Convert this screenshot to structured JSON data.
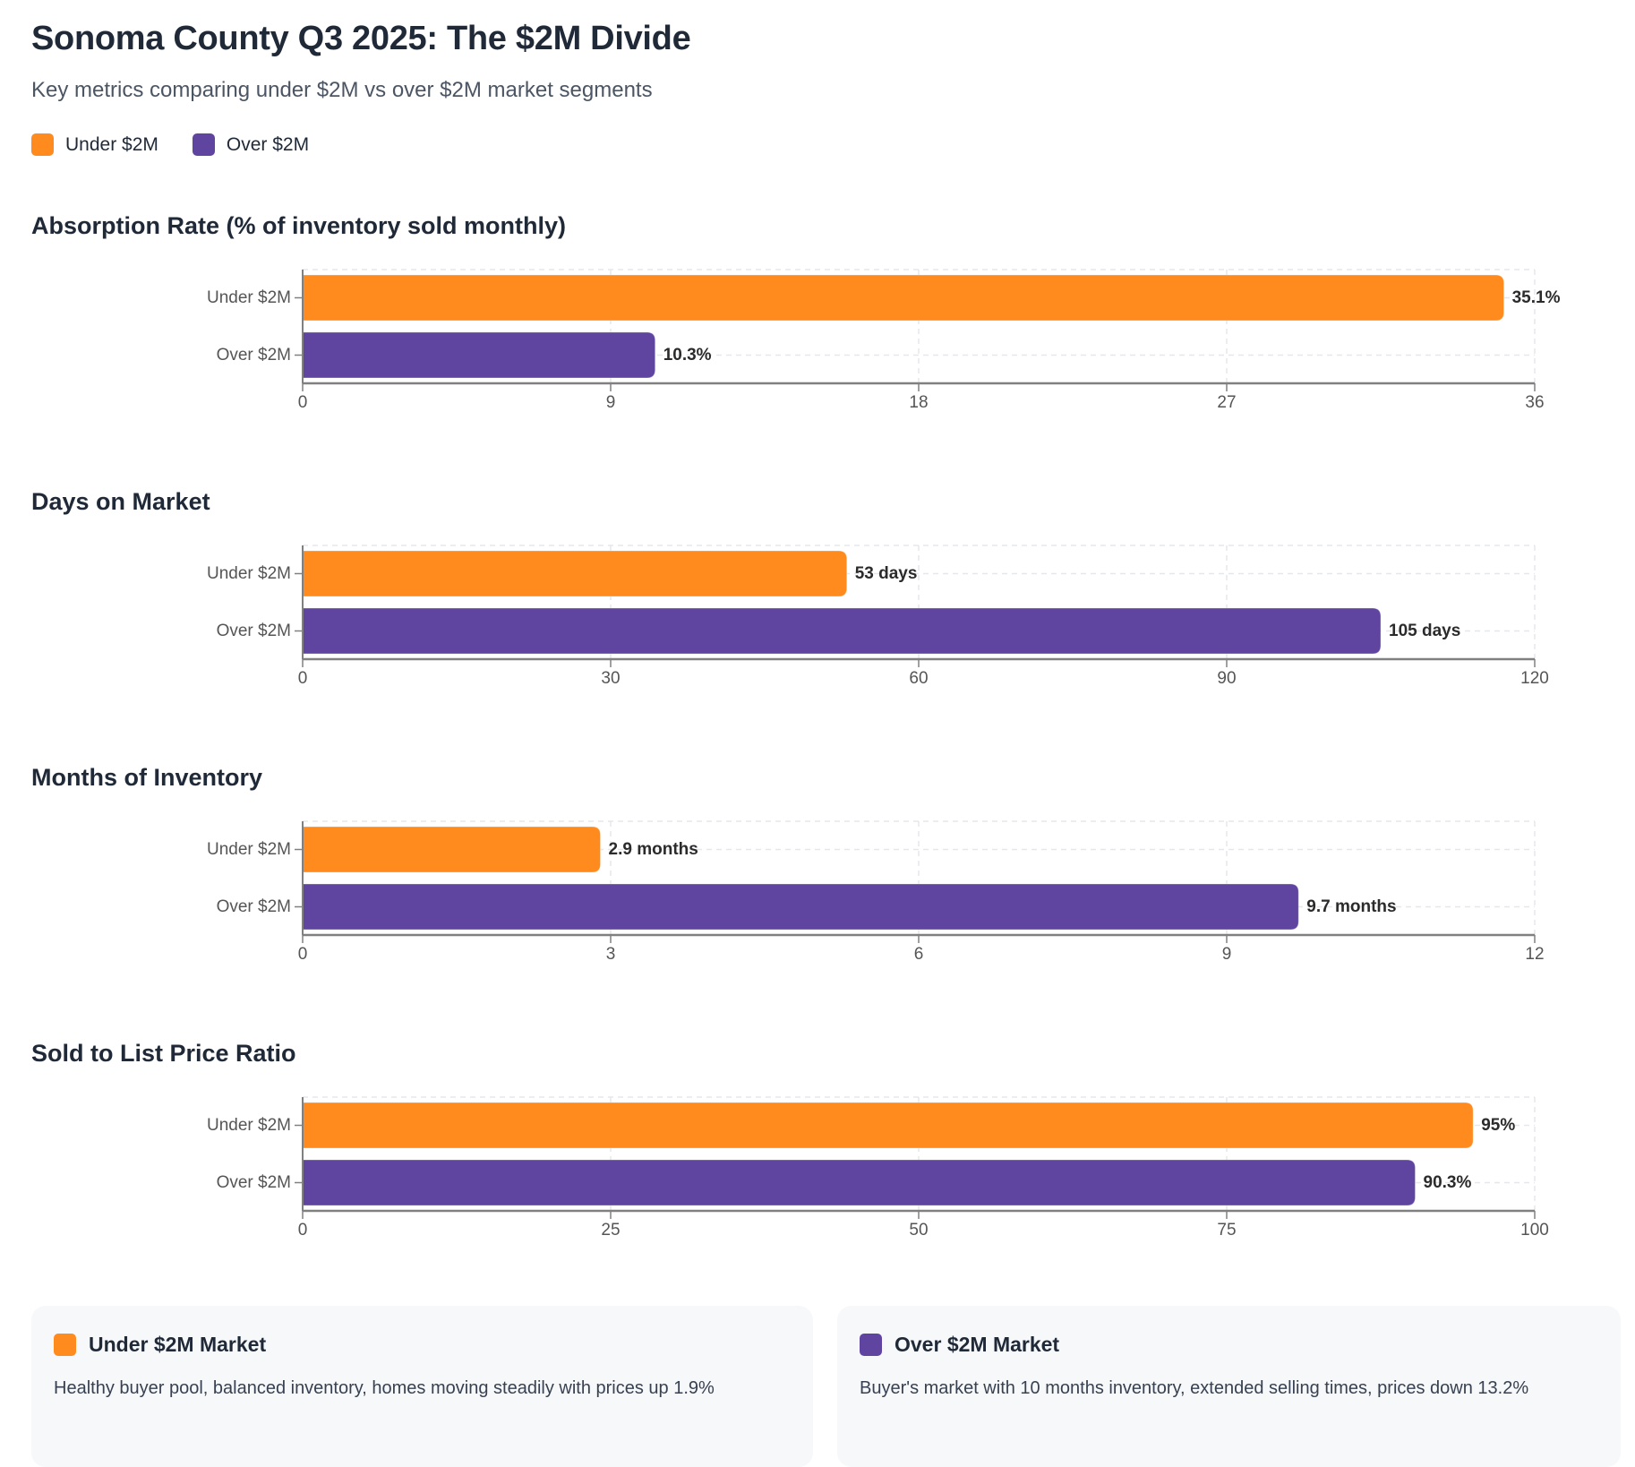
{
  "header": {
    "title": "Sonoma County Q3 2025: The $2M Divide",
    "subtitle": "Key metrics comparing under $2M vs over $2M market segments"
  },
  "legend": [
    {
      "label": "Under $2M",
      "color": "#FF8A1E"
    },
    {
      "label": "Over $2M",
      "color": "#5F44A0"
    }
  ],
  "chart_data": [
    {
      "type": "bar",
      "orientation": "horizontal",
      "title": "Absorption Rate (% of inventory sold monthly)",
      "categories": [
        "Under $2M",
        "Over $2M"
      ],
      "values": [
        35.1,
        10.3
      ],
      "value_labels": [
        "35.1%",
        "10.3%"
      ],
      "colors": [
        "#FF8A1E",
        "#5F44A0"
      ],
      "xlim": [
        0,
        36
      ],
      "xticks": [
        0,
        9,
        18,
        27,
        36
      ],
      "xlabel": "",
      "ylabel": "",
      "grid": true
    },
    {
      "type": "bar",
      "orientation": "horizontal",
      "title": "Days on Market",
      "categories": [
        "Under $2M",
        "Over $2M"
      ],
      "values": [
        53,
        105
      ],
      "value_labels": [
        "53 days",
        "105 days"
      ],
      "colors": [
        "#FF8A1E",
        "#5F44A0"
      ],
      "xlim": [
        0,
        120
      ],
      "xticks": [
        0,
        30,
        60,
        90,
        120
      ],
      "xlabel": "",
      "ylabel": "",
      "grid": true
    },
    {
      "type": "bar",
      "orientation": "horizontal",
      "title": "Months of Inventory",
      "categories": [
        "Under $2M",
        "Over $2M"
      ],
      "values": [
        2.9,
        9.7
      ],
      "value_labels": [
        "2.9 months",
        "9.7 months"
      ],
      "colors": [
        "#FF8A1E",
        "#5F44A0"
      ],
      "xlim": [
        0,
        12
      ],
      "xticks": [
        0,
        3,
        6,
        9,
        12
      ],
      "xlabel": "",
      "ylabel": "",
      "grid": true
    },
    {
      "type": "bar",
      "orientation": "horizontal",
      "title": "Sold to List Price Ratio",
      "categories": [
        "Under $2M",
        "Over $2M"
      ],
      "values": [
        95,
        90.3
      ],
      "value_labels": [
        "95%",
        "90.3%"
      ],
      "colors": [
        "#FF8A1E",
        "#5F44A0"
      ],
      "xlim": [
        0,
        100
      ],
      "xticks": [
        0,
        25,
        50,
        75,
        100
      ],
      "xlabel": "",
      "ylabel": "",
      "grid": true
    }
  ],
  "cards": [
    {
      "title": "Under $2M Market",
      "color": "#FF8A1E",
      "body": "Healthy buyer pool, balanced inventory, homes moving steadily with prices up 1.9%"
    },
    {
      "title": "Over $2M Market",
      "color": "#5F44A0",
      "body": "Buyer's market with 10 months inventory, extended selling times, prices down 13.2%"
    }
  ]
}
